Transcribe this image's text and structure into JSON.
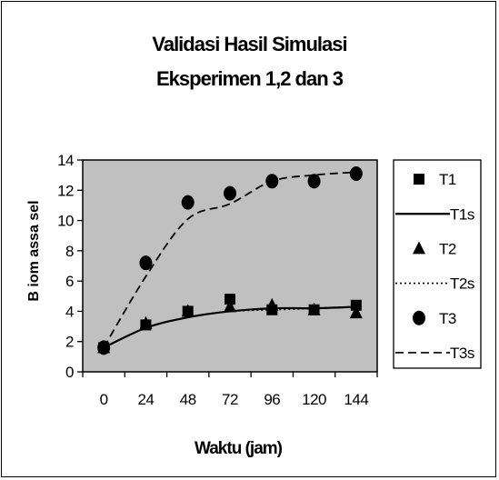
{
  "chart_data": {
    "type": "scatter",
    "title": "Validasi Hasil Simulasi",
    "subtitle": "Eksperimen 1,2 dan 3",
    "xlabel": "Waktu (jam)",
    "ylabel": "B iom assa sel",
    "categories": [
      "0",
      "24",
      "48",
      "72",
      "96",
      "120",
      "144"
    ],
    "x": [
      0,
      24,
      48,
      72,
      96,
      120,
      144
    ],
    "ylim": [
      0,
      14
    ],
    "yticks": [
      0,
      2,
      4,
      6,
      8,
      10,
      12,
      14
    ],
    "grid": false,
    "legend_position": "right",
    "series": [
      {
        "name": "T1",
        "kind": "points",
        "marker": "square",
        "values": [
          1.6,
          3.1,
          4.0,
          4.8,
          4.1,
          4.1,
          4.4
        ]
      },
      {
        "name": "T1s",
        "kind": "line",
        "style": "solid",
        "values": [
          1.6,
          2.9,
          3.6,
          4.0,
          4.2,
          4.2,
          4.3
        ]
      },
      {
        "name": "T2",
        "kind": "points",
        "marker": "triangle",
        "values": [
          1.6,
          3.2,
          4.0,
          4.3,
          4.4,
          4.1,
          3.9
        ]
      },
      {
        "name": "T2s",
        "kind": "line",
        "style": "dotted",
        "values": [
          1.6,
          2.9,
          3.6,
          4.0,
          4.1,
          4.2,
          4.3
        ]
      },
      {
        "name": "T3",
        "kind": "points",
        "marker": "circle",
        "values": [
          1.6,
          7.2,
          11.2,
          11.8,
          12.6,
          12.6,
          13.1
        ]
      },
      {
        "name": "T3s",
        "kind": "line",
        "style": "dashed",
        "values": [
          1.6,
          6.3,
          10.1,
          11.1,
          12.6,
          13.0,
          13.2
        ]
      }
    ],
    "colors": {
      "plot_background": "#c0c0c0",
      "series": "#000000"
    }
  }
}
